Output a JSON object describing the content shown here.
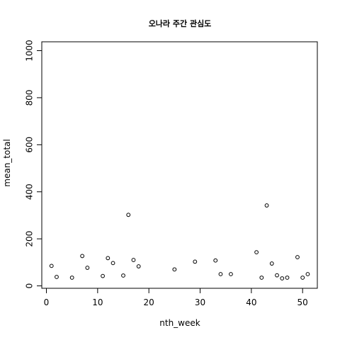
{
  "chart_data": {
    "type": "scatter",
    "title": "오나라 주간 관심도",
    "xlabel": "nth_week",
    "ylabel": "mean_total",
    "xlim": [
      0,
      52
    ],
    "ylim": [
      0,
      1000
    ],
    "x_ticks": [
      0,
      10,
      20,
      30,
      40,
      50
    ],
    "y_ticks": [
      0,
      200,
      400,
      600,
      800,
      1000
    ],
    "grid": false,
    "legend": "none",
    "series": [
      {
        "points": [
          {
            "x": 1,
            "y": 85
          },
          {
            "x": 2,
            "y": 38
          },
          {
            "x": 5,
            "y": 35
          },
          {
            "x": 7,
            "y": 127
          },
          {
            "x": 8,
            "y": 77
          },
          {
            "x": 11,
            "y": 42
          },
          {
            "x": 12,
            "y": 118
          },
          {
            "x": 13,
            "y": 97
          },
          {
            "x": 15,
            "y": 44
          },
          {
            "x": 16,
            "y": 302
          },
          {
            "x": 17,
            "y": 110
          },
          {
            "x": 18,
            "y": 83
          },
          {
            "x": 25,
            "y": 70
          },
          {
            "x": 29,
            "y": 103
          },
          {
            "x": 33,
            "y": 108
          },
          {
            "x": 34,
            "y": 50
          },
          {
            "x": 36,
            "y": 50
          },
          {
            "x": 41,
            "y": 143
          },
          {
            "x": 42,
            "y": 35
          },
          {
            "x": 43,
            "y": 342
          },
          {
            "x": 44,
            "y": 95
          },
          {
            "x": 45,
            "y": 45
          },
          {
            "x": 46,
            "y": 32
          },
          {
            "x": 47,
            "y": 35
          },
          {
            "x": 49,
            "y": 122
          },
          {
            "x": 50,
            "y": 35
          },
          {
            "x": 51,
            "y": 50
          }
        ]
      }
    ]
  }
}
